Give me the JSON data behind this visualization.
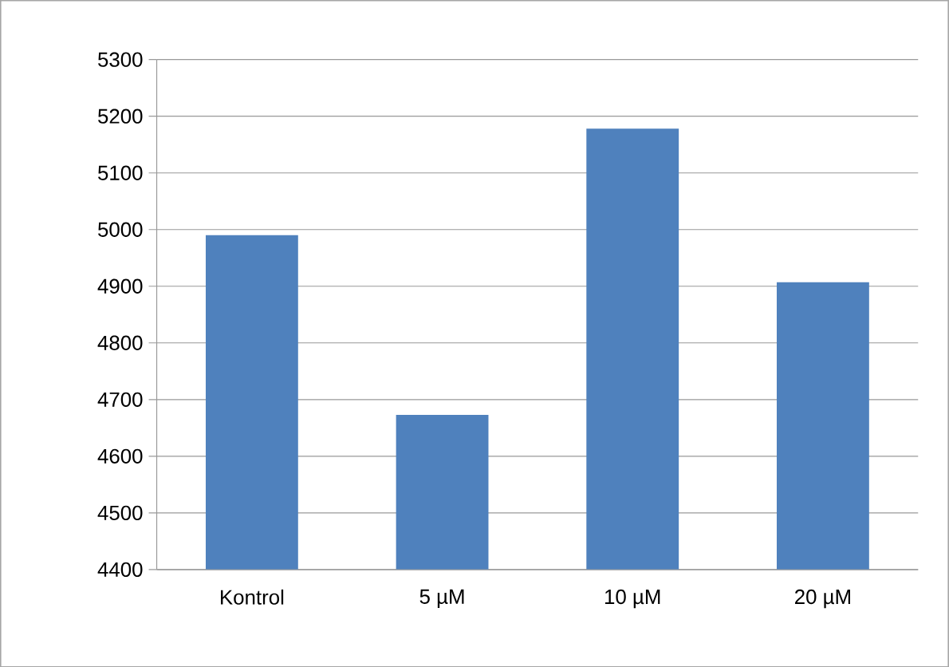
{
  "chart_data": {
    "type": "bar",
    "categories": [
      "Kontrol",
      "5 µM",
      "10 µM",
      "20 µM"
    ],
    "values": [
      4990,
      4673,
      5178,
      4907
    ],
    "color": "#4f81bd",
    "ylim": [
      4400,
      5300
    ],
    "yticks": [
      4400,
      4500,
      4600,
      4700,
      4800,
      4900,
      5000,
      5100,
      5200,
      5300
    ],
    "grid": "y"
  }
}
